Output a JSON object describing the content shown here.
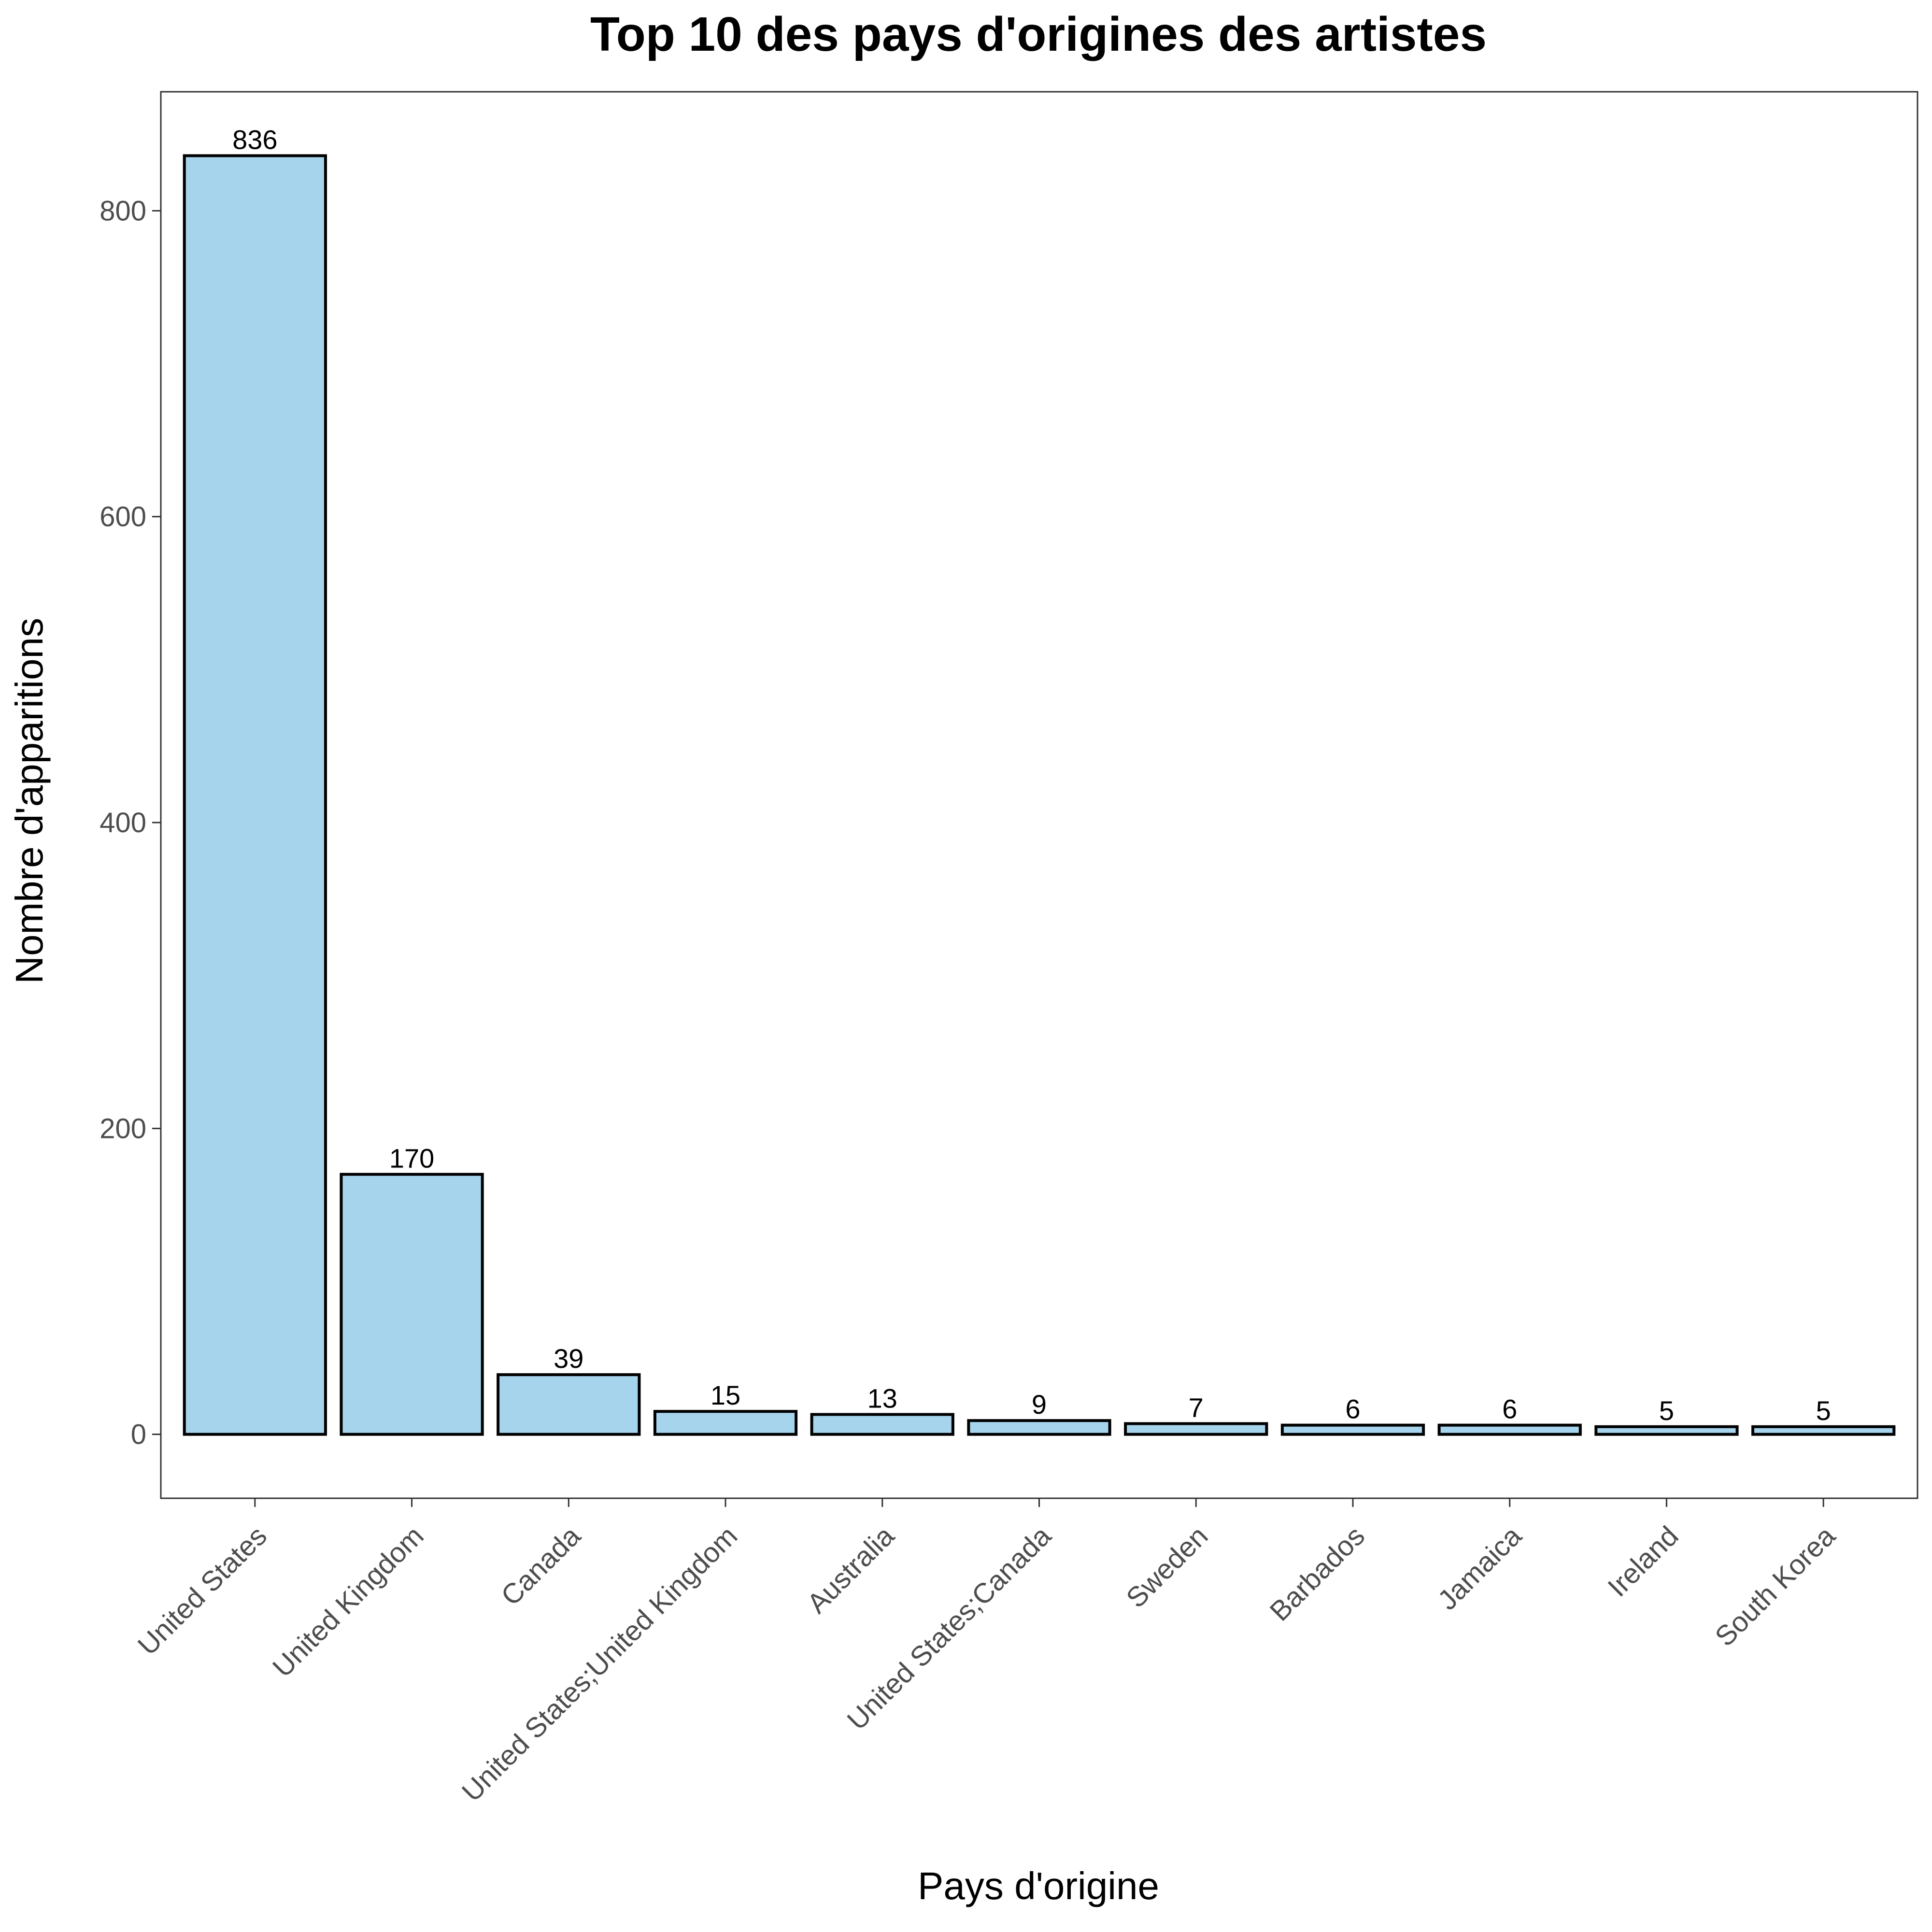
{
  "chart_data": {
    "type": "bar",
    "title": "Top 10 des pays d'origines des artistes",
    "xlabel": "Pays d'origine",
    "ylabel": "Nombre d'apparitions",
    "categories": [
      "United States",
      "United Kingdom",
      "Canada",
      "United States;United Kingdom",
      "Australia",
      "United States;Canada",
      "Sweden",
      "Barbados",
      "Jamaica",
      "Ireland",
      "South Korea"
    ],
    "values": [
      836,
      170,
      39,
      15,
      13,
      9,
      7,
      6,
      6,
      5,
      5
    ],
    "data_labels": [
      "836",
      "170",
      "39",
      "15",
      "13",
      "9",
      "7",
      "6",
      "6",
      "5",
      "5"
    ],
    "ylim": [
      -41.8,
      877.8
    ],
    "yticks": [
      0,
      200,
      400,
      600,
      800
    ],
    "ytick_labels": [
      "0",
      "200",
      "400",
      "600",
      "800"
    ],
    "grid": false,
    "legend": "none",
    "bar_fill": "#a6d4ed",
    "bar_stroke": "#000000",
    "panel_border": "#333333"
  }
}
